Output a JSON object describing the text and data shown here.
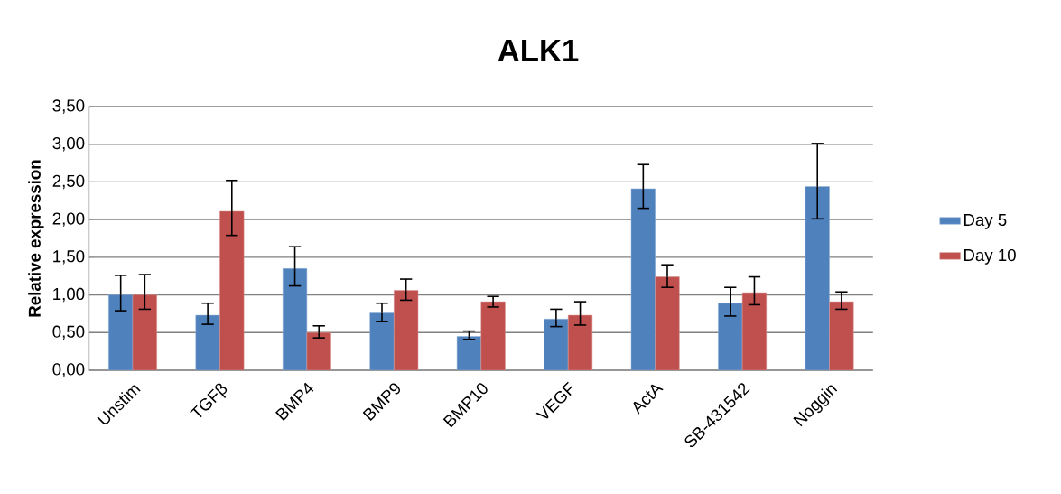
{
  "chart_data": {
    "type": "bar",
    "title": "ALK1",
    "ylabel": "Relative expression",
    "categories": [
      "Unstim",
      "TGFβ",
      "BMP4",
      "BMP9",
      "BMP10",
      "VEGF",
      "ActA",
      "SB-431542",
      "Noggin"
    ],
    "series": [
      {
        "name": "Day 5",
        "color": "#4f81bd",
        "values": [
          1.0,
          0.73,
          1.35,
          0.76,
          0.45,
          0.68,
          2.41,
          0.89,
          2.44
        ],
        "errors": [
          [
            0.79,
            1.26
          ],
          [
            0.61,
            0.89
          ],
          [
            1.12,
            1.64
          ],
          [
            0.65,
            0.89
          ],
          [
            0.41,
            0.52
          ],
          [
            0.58,
            0.81
          ],
          [
            2.15,
            2.73
          ],
          [
            0.72,
            1.1
          ],
          [
            2.01,
            3.01
          ]
        ]
      },
      {
        "name": "Day 10",
        "color": "#c0504d",
        "values": [
          1.0,
          2.11,
          0.5,
          1.06,
          0.91,
          0.73,
          1.24,
          1.03,
          0.91
        ],
        "errors": [
          [
            0.81,
            1.27
          ],
          [
            1.79,
            2.52
          ],
          [
            0.43,
            0.59
          ],
          [
            0.93,
            1.21
          ],
          [
            0.84,
            0.98
          ],
          [
            0.6,
            0.91
          ],
          [
            1.1,
            1.4
          ],
          [
            0.87,
            1.24
          ],
          [
            0.81,
            1.04
          ]
        ]
      }
    ],
    "ylim": [
      0,
      3.5
    ],
    "yticks": [
      {
        "value": 0,
        "label": "0,00"
      },
      {
        "value": 0.5,
        "label": "0,50"
      },
      {
        "value": 1,
        "label": "1,00"
      },
      {
        "value": 1.5,
        "label": "1,50"
      },
      {
        "value": 2,
        "label": "2,00"
      },
      {
        "value": 2.5,
        "label": "2,50"
      },
      {
        "value": 3,
        "label": "3,00"
      },
      {
        "value": 3.5,
        "label": "3,50"
      }
    ],
    "grid": "y",
    "legend": "right"
  }
}
